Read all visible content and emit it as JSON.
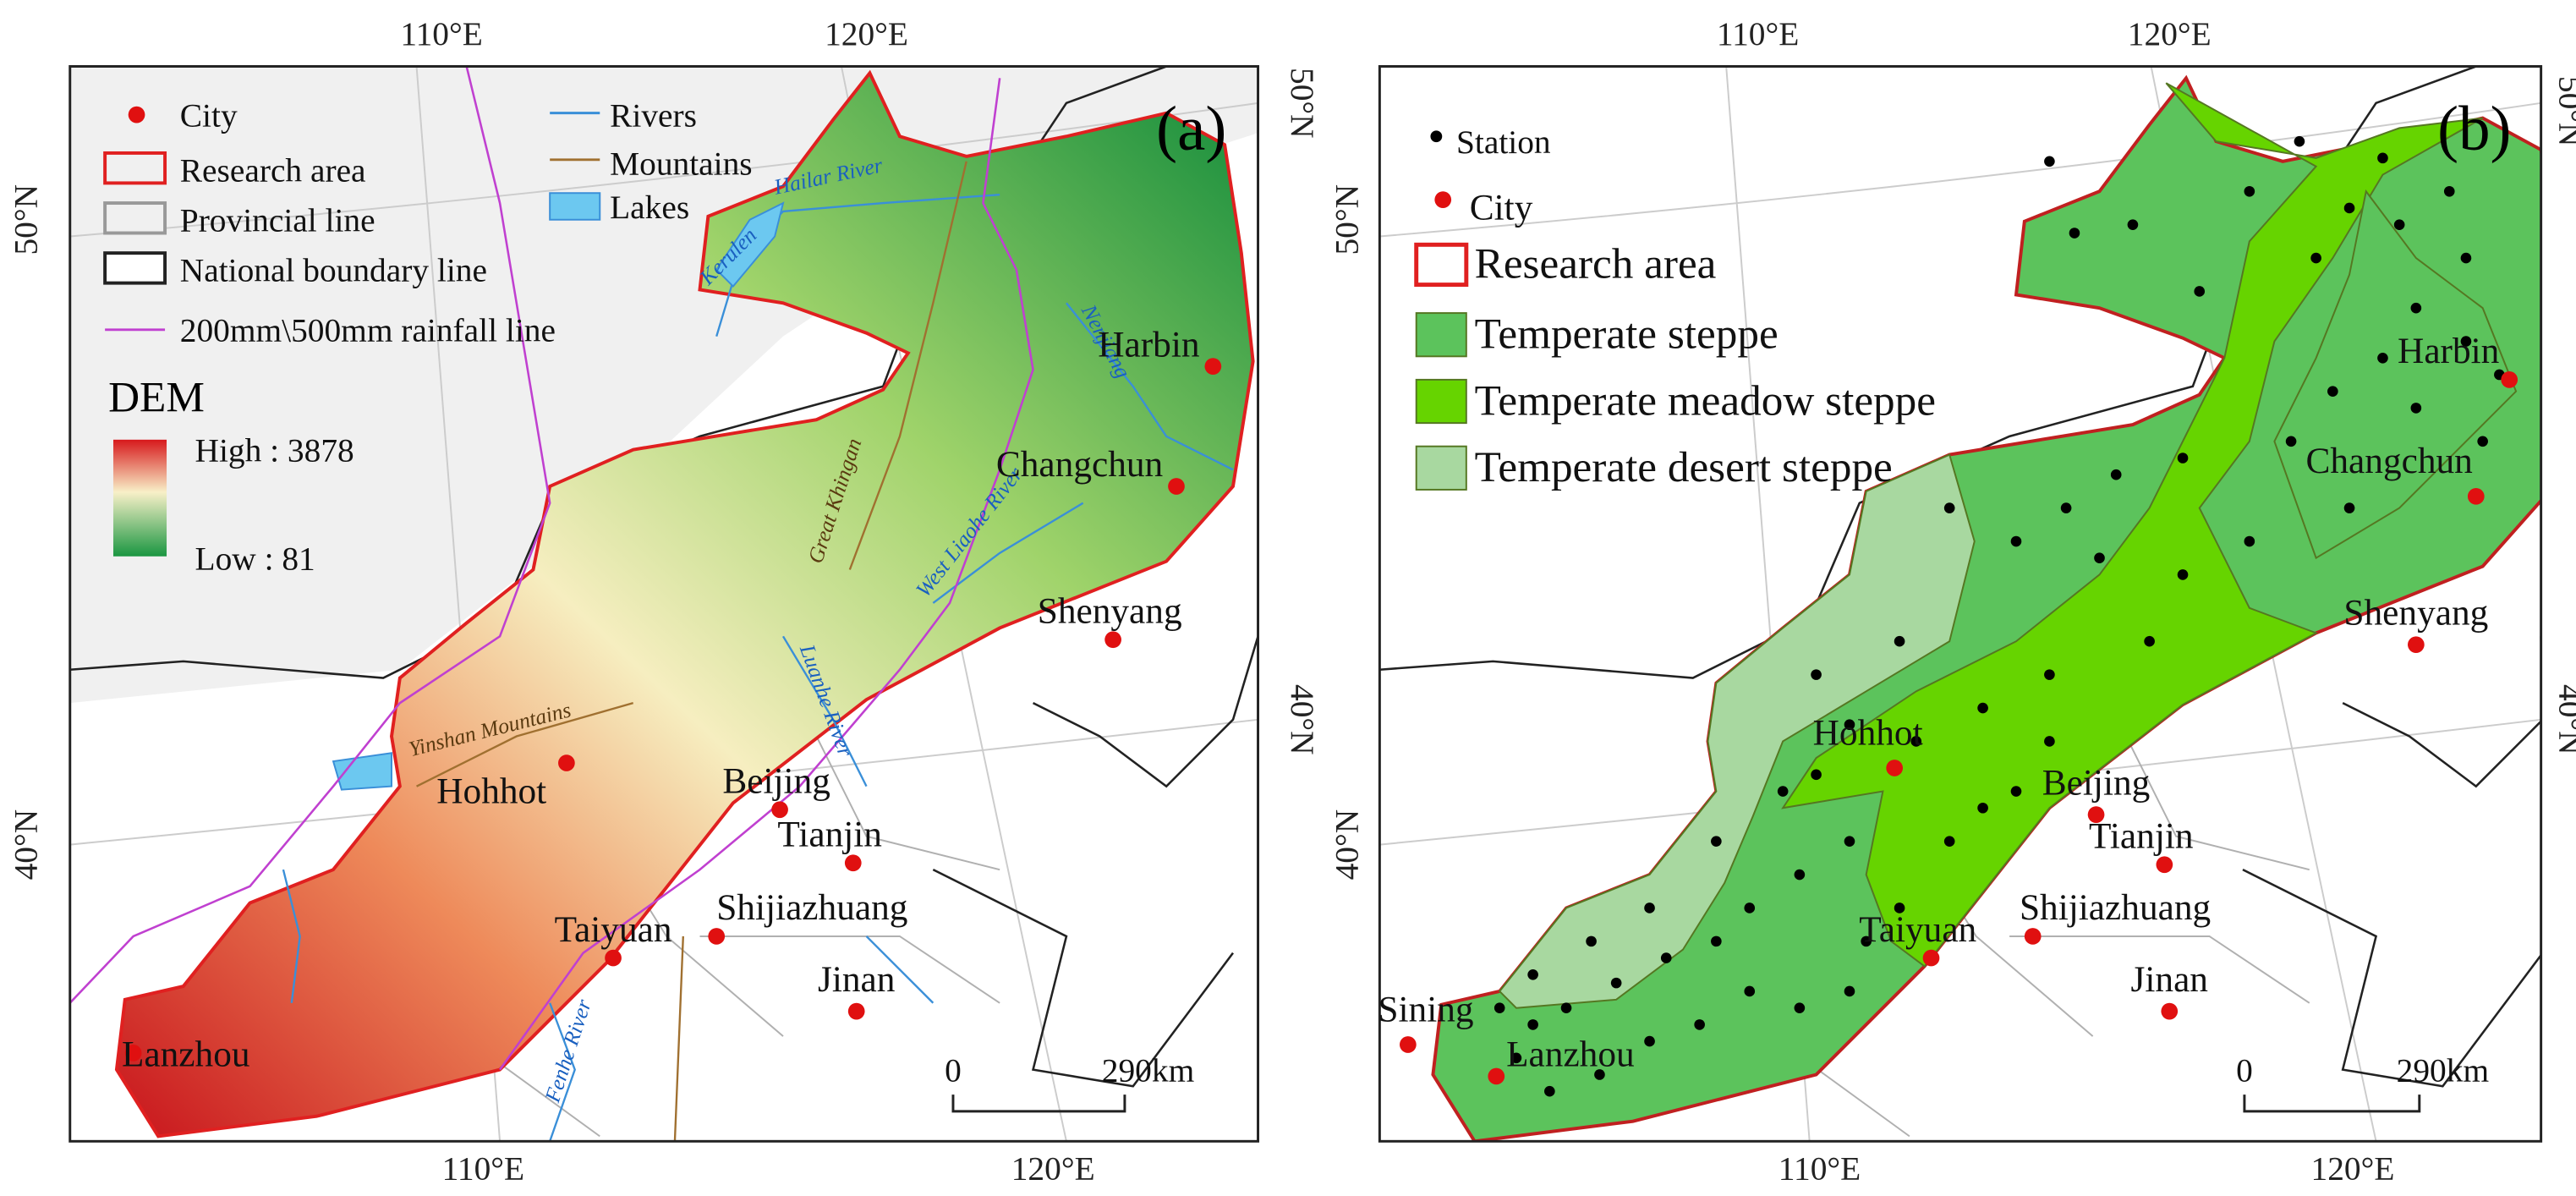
{
  "panels": [
    {
      "label": "(a)",
      "graticule": {
        "top": [
          "110°E",
          "120°E"
        ],
        "bottom": [
          "110°E",
          "120°E"
        ],
        "left": [
          "50°N",
          "40°N"
        ],
        "right": [
          "50°N",
          "40°N"
        ]
      },
      "legend": [
        "City",
        "Research area",
        "Provincial line",
        "National boundary line",
        "200mm\\500mm rainfall line",
        "Rivers",
        "Mountains",
        "Lakes"
      ],
      "dem": {
        "title": "DEM",
        "high": "High : 3878",
        "low": "Low : 81"
      },
      "cities": [
        "Harbin",
        "Changchun",
        "Shenyang",
        "Beijing",
        "Tianjin",
        "Shijiazhuang",
        "Taiyuan",
        "Jinan",
        "Hohhot",
        "Lanzhou"
      ],
      "features": [
        "Hailar River",
        "Kerulen",
        "Nenjiang",
        "Great Khingan",
        "West Liaohe River",
        "Yinshan Mountains",
        "Luanhe River",
        "Fenhe River"
      ],
      "scale": {
        "start": "0",
        "end": "290km"
      }
    },
    {
      "label": "(b)",
      "graticule": {
        "top": [
          "110°E",
          "120°E"
        ],
        "bottom": [
          "110°E",
          "120°E"
        ],
        "left": [
          "50°N",
          "40°N"
        ],
        "right": [
          "50°N",
          "40°N"
        ]
      },
      "legend": [
        "Station",
        "City",
        "Research area",
        "Temperate steppe",
        "Temperate meadow steppe",
        "Temperate desert steppe"
      ],
      "cities": [
        "Harbin",
        "Changchun",
        "Shenyang",
        "Beijing",
        "Tianjin",
        "Shijiazhuang",
        "Taiyuan",
        "Jinan",
        "Hohhot",
        "Lanzhou",
        "Sining"
      ],
      "scale": {
        "start": "0",
        "end": "290km"
      }
    }
  ]
}
